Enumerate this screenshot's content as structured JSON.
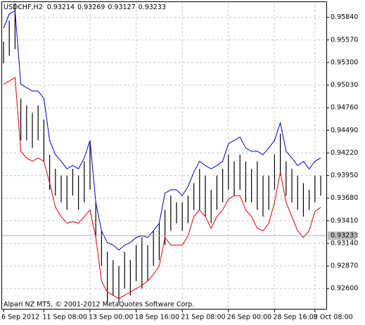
{
  "chart_data": {
    "type": "ohlc",
    "symbol": "USDCHF,H2",
    "quote": [
      0.93214,
      0.93269,
      0.93127,
      0.93233
    ],
    "last": 0.93233,
    "footer": "Alpari NZ MT5, © 2001-2012 MetaQuotes Software Corp.",
    "categories": [
      "6 Sep 2012",
      null,
      null,
      null,
      null,
      null,
      null,
      "11 Sep 08:00",
      null,
      null,
      null,
      null,
      null,
      null,
      null,
      "13 Sep 00:00",
      null,
      null,
      null,
      null,
      null,
      null,
      null,
      "18 Sep 16:00",
      null,
      null,
      null,
      null,
      null,
      null,
      null,
      "21 Sep 08:00",
      null,
      null,
      null,
      null,
      null,
      null,
      null,
      "26 Sep 00:00",
      null,
      null,
      null,
      null,
      null,
      null,
      null,
      "28 Sep 16:00",
      null,
      null,
      null,
      null,
      null,
      null,
      "3 Oct 08:00",
      null
    ],
    "high": [
      0.9555,
      0.958,
      0.9601,
      0.9487,
      0.9479,
      0.947,
      0.9479,
      0.9462,
      0.942,
      0.9403,
      0.9395,
      0.9395,
      0.9403,
      0.9395,
      0.9412,
      0.9437,
      0.9363,
      0.9329,
      0.9304,
      0.9294,
      0.9287,
      0.9304,
      0.9294,
      0.9312,
      0.9321,
      0.9312,
      0.9329,
      0.9338,
      0.9354,
      0.9371,
      0.9363,
      0.9363,
      0.9371,
      0.9386,
      0.9403,
      0.9395,
      0.9378,
      0.9395,
      0.9403,
      0.942,
      0.9412,
      0.942,
      0.9412,
      0.9403,
      0.9412,
      0.9395,
      0.9395,
      0.942,
      0.9445,
      0.9412,
      0.9403,
      0.9395,
      0.9386,
      0.9378,
      0.9395,
      0.9395
    ],
    "low": [
      0.9529,
      0.9538,
      0.9546,
      0.9437,
      0.9437,
      0.9428,
      0.9437,
      0.9412,
      0.9378,
      0.9371,
      0.9363,
      0.9354,
      0.9371,
      0.9354,
      0.9363,
      0.9378,
      0.9321,
      0.9287,
      0.9243,
      0.9252,
      0.9243,
      0.926,
      0.9252,
      0.9269,
      0.926,
      0.9269,
      0.9287,
      0.9294,
      0.9312,
      0.9329,
      0.9338,
      0.9329,
      0.9338,
      0.9354,
      0.9354,
      0.9346,
      0.9338,
      0.9354,
      0.9363,
      0.9378,
      0.9371,
      0.9378,
      0.9363,
      0.9363,
      0.9354,
      0.9346,
      0.9354,
      0.9378,
      0.9395,
      0.9371,
      0.9363,
      0.9354,
      0.9346,
      0.9354,
      0.9363,
      0.9371
    ],
    "series": [
      {
        "color": "#0000cc",
        "values": [
          0.9571,
          0.9588,
          0.9592,
          0.9504,
          0.95,
          0.9496,
          0.9496,
          0.9487,
          0.9437,
          0.942,
          0.9412,
          0.9403,
          0.9407,
          0.9403,
          0.9416,
          0.9437,
          0.9363,
          0.9329,
          0.9315,
          0.9312,
          0.9306,
          0.9312,
          0.9315,
          0.9321,
          0.9323,
          0.9321,
          0.9329,
          0.9338,
          0.9374,
          0.9378,
          0.9378,
          0.9371,
          0.9382,
          0.9399,
          0.9412,
          0.9407,
          0.9403,
          0.9407,
          0.9412,
          0.9433,
          0.9437,
          0.9441,
          0.9428,
          0.9424,
          0.9424,
          0.942,
          0.9428,
          0.9437,
          0.9458,
          0.9424,
          0.9416,
          0.9407,
          0.9412,
          0.9403,
          0.9412,
          0.9416
        ]
      },
      {
        "color": "#e00000",
        "values": [
          0.9504,
          0.9508,
          0.9512,
          0.9424,
          0.9416,
          0.9412,
          0.9416,
          0.9412,
          0.9386,
          0.9357,
          0.9346,
          0.9338,
          0.934,
          0.9338,
          0.9346,
          0.9354,
          0.9321,
          0.9269,
          0.9256,
          0.9252,
          0.9248,
          0.9252,
          0.9256,
          0.926,
          0.9264,
          0.9269,
          0.9277,
          0.9287,
          0.9321,
          0.9312,
          0.9312,
          0.9312,
          0.9323,
          0.9346,
          0.9354,
          0.9346,
          0.9332,
          0.9346,
          0.9354,
          0.9367,
          0.9371,
          0.9371,
          0.9354,
          0.9346,
          0.9332,
          0.9329,
          0.9338,
          0.9363,
          0.9399,
          0.9363,
          0.9346,
          0.9329,
          0.9321,
          0.9329,
          0.9352,
          0.9357
        ]
      }
    ],
    "ylim": [
      0.9235,
      0.9603
    ],
    "yticks": [
      {
        "value": 0.9584,
        "label": "0.95840"
      },
      {
        "value": 0.9557,
        "label": "0.95570"
      },
      {
        "value": 0.953,
        "label": "0.95300"
      },
      {
        "value": 0.9503,
        "label": "0.95030"
      },
      {
        "value": 0.9476,
        "label": "0.94760"
      },
      {
        "value": 0.9449,
        "label": "0.94490"
      },
      {
        "value": 0.9422,
        "label": "0.94220"
      },
      {
        "value": 0.9395,
        "label": "0.93950"
      },
      {
        "value": 0.9368,
        "label": "0.93680"
      },
      {
        "value": 0.9341,
        "label": "0.93410"
      },
      {
        "value": 0.9314,
        "label": "0.93140"
      },
      {
        "value": 0.9287,
        "label": "0.92870"
      },
      {
        "value": 0.926,
        "label": "0.92600"
      }
    ],
    "grid": true
  }
}
